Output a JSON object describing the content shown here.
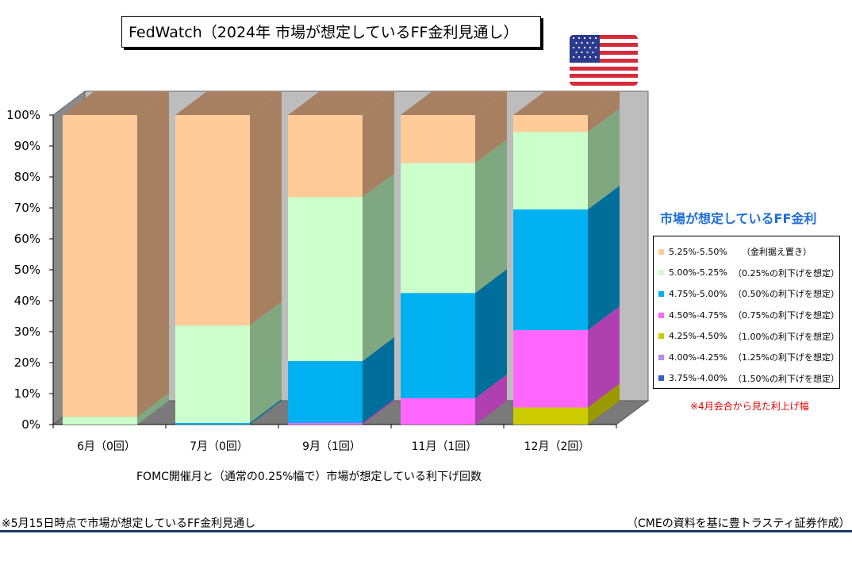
{
  "title": "FedWatch（2024年 市場が想定しているFF金利見通し）",
  "flag_icon": "us-flag-icon",
  "colors": {
    "plot_wall": "#bdbdbd",
    "floor": "#7a7a7a"
  },
  "chart_data": {
    "type": "bar",
    "stacked": true,
    "three_d": true,
    "categories": [
      "6月（0回）",
      "7月（0回）",
      "9月（1回）",
      "11月（1回）",
      "12月（2回）"
    ],
    "xlabel": "FOMC開催月と（通常の0.25%幅で）市場が想定している利下げ回数",
    "ylabel": "",
    "ylim": [
      0,
      100
    ],
    "yticks": [
      "0%",
      "10%",
      "20%",
      "30%",
      "40%",
      "50%",
      "60%",
      "70%",
      "80%",
      "90%",
      "100%"
    ],
    "grid": false,
    "legend_position": "right",
    "legend_title": "市場が想定しているFF金利",
    "series": [
      {
        "name": "3.75%-4.00%",
        "label": "（1.50%の利下げを想定）",
        "color": "#2e62c4",
        "side": "#1e4590",
        "values": [
          0,
          0,
          0,
          0,
          0
        ]
      },
      {
        "name": "4.00%-4.25%",
        "label": "（1.25%の利下げを想定）",
        "color": "#b58ce6",
        "side": "#8a63b8",
        "values": [
          0,
          0,
          0,
          0,
          0
        ]
      },
      {
        "name": "4.25%-4.50%",
        "label": "（1.00%の利下げを想定）",
        "color": "#cccc00",
        "side": "#9a9a00",
        "values": [
          0,
          0,
          0,
          0,
          5.5
        ]
      },
      {
        "name": "4.50%-4.75%",
        "label": "（0.75%の利下げを想定）",
        "color": "#ff66ff",
        "side": "#b040b0",
        "values": [
          0,
          0,
          0.5,
          8.5,
          25
        ]
      },
      {
        "name": "4.75%-5.00%",
        "label": "（0.50%の利下げを想定）",
        "color": "#00b0f0",
        "side": "#006e9a",
        "values": [
          0,
          0.5,
          20,
          34,
          39
        ]
      },
      {
        "name": "5.00%-5.25%",
        "label": "（0.25%の利下げを想定）",
        "color": "#ccffcc",
        "side": "#80a880",
        "values": [
          2.5,
          31.5,
          53,
          42,
          25
        ]
      },
      {
        "name": "5.25%-5.50%",
        "label": "（金利据え置き）",
        "color": "#ffcc99",
        "side": "#a68060",
        "values": [
          97.5,
          68,
          26.5,
          15.5,
          5.5
        ]
      }
    ],
    "annotations": [
      "※4月会合から見た利上げ幅"
    ]
  },
  "footer": {
    "left": "※5月15日時点で市場が想定しているFF金利見通し",
    "right": "（CMEの資料を基に豊トラスティ証券作成）"
  }
}
